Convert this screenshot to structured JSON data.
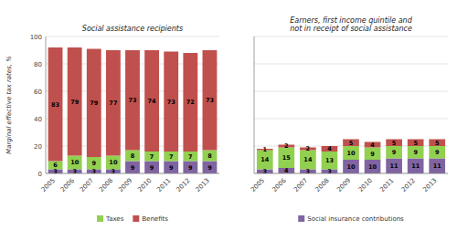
{
  "chart_data": [
    {
      "type": "bar",
      "stacked": true,
      "title": "Social assistance recipients",
      "ylabel": "Marginal effective tax rates, %",
      "categories": [
        2005,
        2006,
        2007,
        2008,
        2009,
        2010,
        2011,
        2012,
        2013
      ],
      "series": [
        {
          "color": "#8064a2",
          "values": [
            3,
            3,
            3,
            3,
            9,
            9,
            9,
            9,
            9
          ]
        },
        {
          "name": "Taxes",
          "color": "#92d050",
          "values": [
            6,
            10,
            9,
            10,
            8,
            7,
            7,
            7,
            8
          ]
        },
        {
          "name": "Benefits",
          "color": "#c0504d",
          "values": [
            83,
            79,
            79,
            77,
            73,
            74,
            73,
            72,
            73
          ]
        }
      ],
      "ylim": [
        0,
        100
      ],
      "yticks": [
        0,
        20,
        40,
        60,
        80,
        100
      ],
      "grid": true,
      "data_labels": true,
      "legend": "bottom"
    },
    {
      "type": "bar",
      "stacked": true,
      "title": "Earners, first income quintile and\nnot in receipt of social assistance",
      "categories": [
        2005,
        2006,
        2007,
        2008,
        2009,
        2010,
        2011,
        2012,
        2013
      ],
      "series": [
        {
          "name": "Social insurance contributions",
          "color": "#8064a2",
          "values": [
            3,
            4,
            3,
            3,
            10,
            10,
            11,
            11,
            11
          ]
        },
        {
          "color": "#92d050",
          "values": [
            14,
            15,
            14,
            13,
            10,
            9,
            9,
            9,
            9
          ]
        },
        {
          "color": "#c0504d",
          "values": [
            1,
            2,
            2,
            4,
            5,
            4,
            5,
            5,
            5
          ]
        }
      ],
      "ylim": [
        0,
        100
      ],
      "yticks": [
        0,
        20,
        40,
        60,
        80,
        100
      ],
      "grid": true,
      "data_labels": true,
      "legend": "bottom",
      "tick_labels": "x"
    }
  ]
}
